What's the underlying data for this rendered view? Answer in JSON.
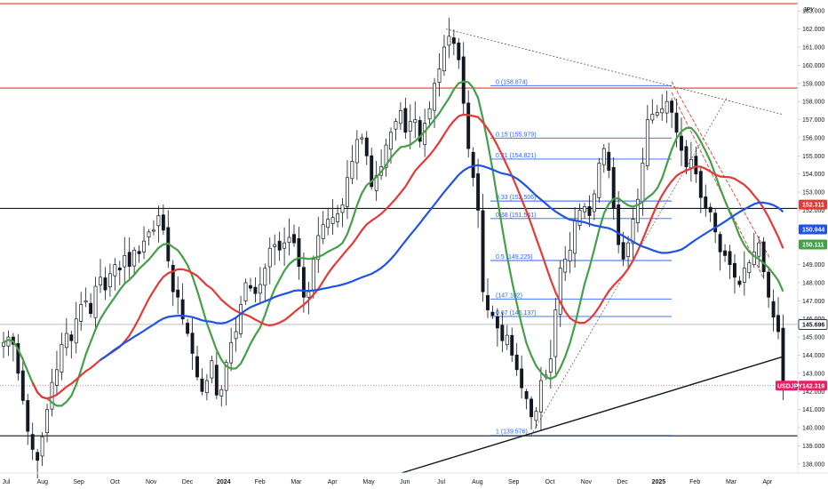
{
  "currency_label": "JPY",
  "colors": {
    "candle": "#131722",
    "ma_green": "#43a047",
    "ma_red": "#e53935",
    "ma_blue": "#1e53e5",
    "horizontal_red": "#e53935",
    "horizontal_black": "#131722",
    "fib": "#2962ff",
    "trend_dashed": "#555555",
    "channel_dashed_red": "#e53935",
    "grid": "#f0f3fa"
  },
  "chart_data": {
    "type": "candlestick",
    "symbol": "USDJPY",
    "y_axis": {
      "min": 137.5,
      "max": 163.6,
      "ticks": [
        "138.000",
        "139.000",
        "140.000",
        "141.000",
        "142.000",
        "143.000",
        "144.000",
        "145.000",
        "146.000",
        "147.000",
        "148.000",
        "149.000",
        "150.000",
        "151.000",
        "152.000",
        "153.000",
        "154.000",
        "155.000",
        "156.000",
        "157.000",
        "158.000",
        "159.000",
        "160.000",
        "161.000",
        "162.000",
        "163.000"
      ],
      "position": "right"
    },
    "x_axis": {
      "ticks": [
        {
          "label": "Jul",
          "bold": false
        },
        {
          "label": "Aug",
          "bold": false
        },
        {
          "label": "Sep",
          "bold": false
        },
        {
          "label": "Oct",
          "bold": false
        },
        {
          "label": "Nov",
          "bold": false
        },
        {
          "label": "Dec",
          "bold": false
        },
        {
          "label": "2024",
          "bold": true
        },
        {
          "label": "Feb",
          "bold": false
        },
        {
          "label": "Mar",
          "bold": false
        },
        {
          "label": "Apr",
          "bold": false
        },
        {
          "label": "May",
          "bold": false
        },
        {
          "label": "Jun",
          "bold": false
        },
        {
          "label": "Jul",
          "bold": false
        },
        {
          "label": "Aug",
          "bold": false
        },
        {
          "label": "Sep",
          "bold": false
        },
        {
          "label": "Oct",
          "bold": false
        },
        {
          "label": "Nov",
          "bold": false
        },
        {
          "label": "Dec",
          "bold": false
        },
        {
          "label": "2025",
          "bold": true
        },
        {
          "label": "Feb",
          "bold": false
        },
        {
          "label": "Mar",
          "bold": false
        },
        {
          "label": "Apr",
          "bold": false
        }
      ]
    },
    "price_path": [
      [
        0,
        144.7
      ],
      [
        1,
        145.0
      ],
      [
        2,
        144.6
      ],
      [
        3,
        143.0
      ],
      [
        4,
        141.5
      ],
      [
        5,
        139.8
      ],
      [
        6,
        138.8
      ],
      [
        7,
        138.2
      ],
      [
        8,
        139.5
      ],
      [
        9,
        141.0
      ],
      [
        10,
        142.5
      ],
      [
        11,
        143.2
      ],
      [
        12,
        144.6
      ],
      [
        13,
        145.2
      ],
      [
        14,
        144.8
      ],
      [
        15,
        146.0
      ],
      [
        16,
        146.8
      ],
      [
        17,
        147.0
      ],
      [
        18,
        146.3
      ],
      [
        19,
        147.8
      ],
      [
        20,
        148.3
      ],
      [
        21,
        147.6
      ],
      [
        22,
        148.5
      ],
      [
        23,
        149.0
      ],
      [
        24,
        148.7
      ],
      [
        25,
        149.5
      ],
      [
        26,
        148.9
      ],
      [
        27,
        149.8
      ],
      [
        28,
        149.6
      ],
      [
        29,
        150.3
      ],
      [
        30,
        150.8
      ],
      [
        31,
        150.9
      ],
      [
        32,
        151.7
      ],
      [
        33,
        150.9
      ],
      [
        34,
        149.2
      ],
      [
        35,
        147.5
      ],
      [
        36,
        147.2
      ],
      [
        37,
        146.0
      ],
      [
        38,
        145.2
      ],
      [
        39,
        144.1
      ],
      [
        40,
        142.8
      ],
      [
        41,
        142.0
      ],
      [
        42,
        142.6
      ],
      [
        43,
        143.7
      ],
      [
        44,
        141.8
      ],
      [
        45,
        142.1
      ],
      [
        46,
        143.6
      ],
      [
        47,
        144.7
      ],
      [
        48,
        145.3
      ],
      [
        49,
        146.8
      ],
      [
        50,
        148.0
      ],
      [
        51,
        147.7
      ],
      [
        52,
        147.4
      ],
      [
        53,
        147.9
      ],
      [
        54,
        148.8
      ],
      [
        55,
        149.9
      ],
      [
        56,
        150.1
      ],
      [
        57,
        149.8
      ],
      [
        58,
        150.2
      ],
      [
        59,
        150.5
      ],
      [
        60,
        150.2
      ],
      [
        61,
        148.9
      ],
      [
        62,
        147.2
      ],
      [
        63,
        147.5
      ],
      [
        64,
        149.3
      ],
      [
        65,
        150.6
      ],
      [
        66,
        151.2
      ],
      [
        67,
        151.5
      ],
      [
        68,
        151.6
      ],
      [
        69,
        151.8
      ],
      [
        70,
        152.3
      ],
      [
        71,
        153.8
      ],
      [
        72,
        154.7
      ],
      [
        73,
        155.9
      ],
      [
        74,
        156.0
      ],
      [
        75,
        155.0
      ],
      [
        76,
        153.3
      ],
      [
        77,
        153.9
      ],
      [
        78,
        154.4
      ],
      [
        79,
        155.6
      ],
      [
        80,
        156.3
      ],
      [
        81,
        156.9
      ],
      [
        82,
        157.5
      ],
      [
        83,
        156.3
      ],
      [
        84,
        156.9
      ],
      [
        85,
        157.0
      ],
      [
        86,
        155.8
      ],
      [
        87,
        156.8
      ],
      [
        88,
        157.6
      ],
      [
        89,
        159.0
      ],
      [
        90,
        159.8
      ],
      [
        91,
        161.0
      ],
      [
        92,
        161.6
      ],
      [
        93,
        161.2
      ],
      [
        94,
        160.3
      ],
      [
        95,
        157.9
      ],
      [
        96,
        155.4
      ],
      [
        97,
        153.8
      ],
      [
        98,
        152.0
      ],
      [
        99,
        147.5
      ],
      [
        100,
        146.5
      ],
      [
        101,
        146.2
      ],
      [
        102,
        145.5
      ],
      [
        103,
        144.8
      ],
      [
        104,
        145.1
      ],
      [
        105,
        144.0
      ],
      [
        106,
        143.2
      ],
      [
        107,
        142.2
      ],
      [
        108,
        141.6
      ],
      [
        109,
        140.6
      ],
      [
        110,
        140.9
      ],
      [
        111,
        142.6
      ],
      [
        112,
        142.9
      ],
      [
        113,
        143.8
      ],
      [
        114,
        146.5
      ],
      [
        115,
        148.8
      ],
      [
        116,
        149.3
      ],
      [
        117,
        149.8
      ],
      [
        118,
        151.4
      ],
      [
        119,
        152.0
      ],
      [
        120,
        152.2
      ],
      [
        121,
        151.7
      ],
      [
        122,
        152.9
      ],
      [
        123,
        154.6
      ],
      [
        124,
        155.4
      ],
      [
        125,
        154.2
      ],
      [
        126,
        152.1
      ],
      [
        127,
        150.1
      ],
      [
        128,
        149.3
      ],
      [
        129,
        150.2
      ],
      [
        130,
        151.5
      ],
      [
        131,
        152.6
      ],
      [
        132,
        154.6
      ],
      [
        133,
        157.0
      ],
      [
        134,
        157.3
      ],
      [
        135,
        157.4
      ],
      [
        136,
        157.6
      ],
      [
        137,
        158.0
      ],
      [
        138,
        157.4
      ],
      [
        139,
        156.3
      ],
      [
        140,
        155.3
      ],
      [
        141,
        154.4
      ],
      [
        142,
        154.8
      ],
      [
        143,
        154.0
      ],
      [
        144,
        152.7
      ],
      [
        145,
        152.1
      ],
      [
        146,
        151.9
      ],
      [
        147,
        150.8
      ],
      [
        148,
        149.7
      ],
      [
        149,
        149.5
      ],
      [
        150,
        149.0
      ],
      [
        151,
        148.3
      ],
      [
        152,
        147.9
      ],
      [
        153,
        148.8
      ],
      [
        154,
        149.1
      ],
      [
        155,
        149.7
      ],
      [
        156,
        150.2
      ],
      [
        157,
        148.6
      ],
      [
        158,
        147.2
      ],
      [
        159,
        146.1
      ],
      [
        160,
        145.3
      ],
      [
        161,
        142.3
      ]
    ],
    "moving_averages": [
      {
        "color": "green",
        "last_value": "150.111"
      },
      {
        "color": "red",
        "last_value": "152.311"
      },
      {
        "color": "blue",
        "last_value": "150.944"
      }
    ],
    "horizontal_lines": [
      {
        "price": 163.4,
        "color": "red"
      },
      {
        "price": 158.74,
        "color": "red"
      },
      {
        "price": 152.1,
        "color": "black"
      },
      {
        "price": 145.696,
        "color": "gray"
      },
      {
        "price": 139.55,
        "color": "black"
      }
    ],
    "fibonacci": {
      "levels": [
        {
          "ratio": "0",
          "price": 158.874,
          "label": "0 (158.874)"
        },
        {
          "ratio": "0.15",
          "price": 155.979,
          "label": "0.15 (155.979)"
        },
        {
          "ratio": "0.21",
          "price": 154.821,
          "label": "0.21 (154.821)"
        },
        {
          "ratio": "0.33",
          "price": 152.506,
          "label": "0.33 (152.506)"
        },
        {
          "ratio": "0.38",
          "price": 151.541,
          "label": "0.38 (151.541)"
        },
        {
          "ratio": "0.5",
          "price": 149.225,
          "label": "0.5 (149.225)"
        },
        {
          "ratio": "0.62",
          "price": 147.102,
          "label": "(147.102)"
        },
        {
          "ratio": "0.67",
          "price": 146.137,
          "label": "0.67 (146.137)"
        },
        {
          "ratio": "1",
          "price": 139.576,
          "label": "1 (139.576)"
        }
      ]
    },
    "price_badges": [
      {
        "value": "152.311",
        "price": 152.311,
        "bg": "#e53935",
        "text_color": "white"
      },
      {
        "value": "150.944",
        "price": 150.944,
        "bg": "#1e53e5",
        "text_color": "white"
      },
      {
        "value": "150.111",
        "price": 150.111,
        "bg": "#43a047",
        "text_color": "white"
      },
      {
        "value": "145.696",
        "price": 145.696,
        "bg": "#ffffff",
        "text_color": "dark",
        "border": "#131722"
      },
      {
        "value": "142.319",
        "price": 142.319,
        "bg": "#e91e63",
        "text_color": "white"
      }
    ],
    "symbol_badge": {
      "text": "USDJPY",
      "price": 142.319
    },
    "grid": false
  }
}
